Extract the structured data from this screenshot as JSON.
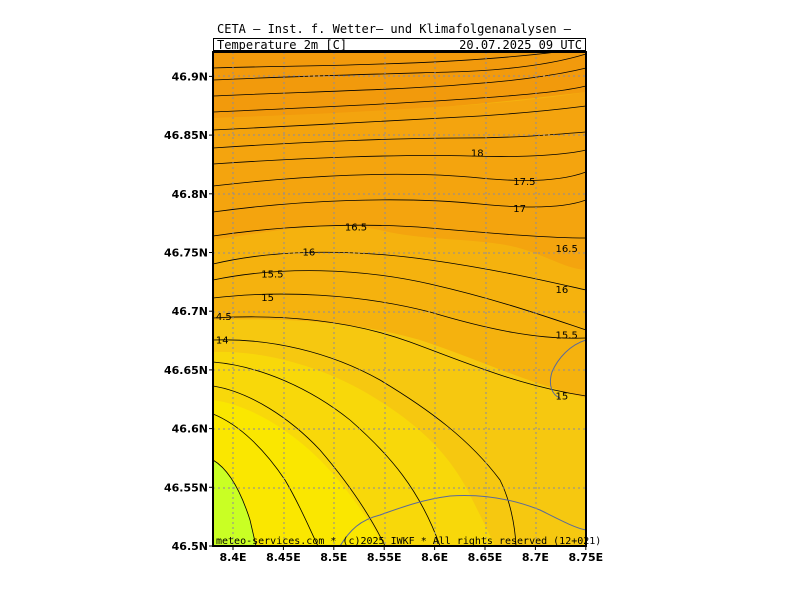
{
  "header": {
    "title": "CETA — Inst. f. Wetter— und Klimafolgenanalysen —",
    "field": "Temperature_2m_[C]",
    "datetime": "20.07.2025 09 UTC"
  },
  "footer": "meteo-services.com * (c)2025 IWKF * All rights reserved (12+021)",
  "axes": {
    "y_ticks": [
      "46.5N",
      "46.55N",
      "46.6N",
      "46.65N",
      "46.7N",
      "46.75N",
      "46.8N",
      "46.85N",
      "46.9N"
    ],
    "x_ticks": [
      "8.4E",
      "8.45E",
      "8.5E",
      "8.55E",
      "8.6E",
      "8.65E",
      "8.7E",
      "8.75E"
    ]
  },
  "contour_labels": [
    {
      "text": "18",
      "lon": 8.636,
      "lat": 46.835
    },
    {
      "text": "17.5",
      "lon": 8.678,
      "lat": 46.811
    },
    {
      "text": "17",
      "lon": 8.678,
      "lat": 46.788
    },
    {
      "text": "16.5",
      "lon": 8.511,
      "lat": 46.772
    },
    {
      "text": "16.5",
      "lon": 8.72,
      "lat": 46.754
    },
    {
      "text": "16",
      "lon": 8.469,
      "lat": 46.751
    },
    {
      "text": "16",
      "lon": 8.72,
      "lat": 46.719
    },
    {
      "text": "15.5",
      "lon": 8.428,
      "lat": 46.732
    },
    {
      "text": "15.5",
      "lon": 8.72,
      "lat": 46.68
    },
    {
      "text": "15",
      "lon": 8.428,
      "lat": 46.712
    },
    {
      "text": "15",
      "lon": 8.72,
      "lat": 46.628
    },
    {
      "text": "4.5",
      "lon": 8.383,
      "lat": 46.696
    },
    {
      "text": "14",
      "lon": 8.383,
      "lat": 46.676
    }
  ],
  "colors": {
    "orange_dark": "#f59c0d",
    "orange": "#f8b010",
    "orange_light": "#f9c20f",
    "yellow_orange": "#f6cf0c",
    "yellow": "#f8e000",
    "lime": "#cdff22"
  }
}
